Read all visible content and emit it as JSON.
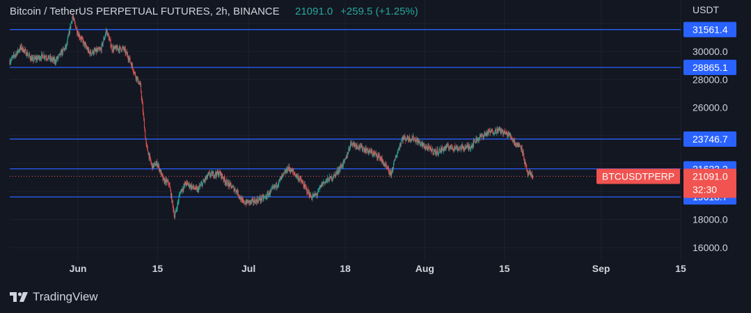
{
  "header": {
    "symbol_title": "Bitcoin / TetherUS PERPETUAL FUTURES, 2h, BINANCE",
    "last": "21091.0",
    "change": "+259.5 (+1.25%)"
  },
  "colors": {
    "background": "#131722",
    "grid": "#1e222d",
    "level_line": "#2962ff",
    "up": "#26a69a",
    "down": "#ef5350",
    "text": "#d1d4dc",
    "badge_blue": "#2962ff",
    "badge_red": "#f05350"
  },
  "footer": {
    "brand": "TradingView"
  },
  "chart_data": {
    "type": "candlestick",
    "currency": "USDT",
    "y_ticks": [
      16000,
      18000,
      26000,
      28000,
      30000
    ],
    "y_tick_labels": [
      "16000.0",
      "18000.0",
      "26000.0",
      "28000.0",
      "30000.0"
    ],
    "ylim": [
      15500,
      33000
    ],
    "x_ticks": [
      {
        "label": "Jun",
        "date": "2022-06-01"
      },
      {
        "label": "15",
        "date": "2022-06-15"
      },
      {
        "label": "Jul",
        "date": "2022-07-01"
      },
      {
        "label": "18",
        "date": "2022-07-18"
      },
      {
        "label": "Aug",
        "date": "2022-08-01"
      },
      {
        "label": "15",
        "date": "2022-08-15"
      },
      {
        "label": "Sep",
        "date": "2022-09-01"
      },
      {
        "label": "15",
        "date": "2022-09-15"
      }
    ],
    "xlim": [
      "2022-05-20",
      "2022-09-15"
    ],
    "price_levels": [
      {
        "value": 31561.4,
        "label": "31561.4"
      },
      {
        "value": 28865.1,
        "label": "28865.1"
      },
      {
        "value": 23746.7,
        "label": "23746.7"
      },
      {
        "value": 21622.2,
        "label": "21622.2"
      },
      {
        "value": 19618.7,
        "label": "19618.7"
      }
    ],
    "current_price": {
      "symbol": "BTCUSDTPERP",
      "value": 21091.0,
      "label": "21091.0",
      "countdown": "32:30"
    },
    "path": [
      [
        "2022-05-20",
        29300
      ],
      [
        "2022-05-22",
        30300
      ],
      [
        "2022-05-24",
        29400
      ],
      [
        "2022-05-26",
        29700
      ],
      [
        "2022-05-28",
        29300
      ],
      [
        "2022-05-30",
        30400
      ],
      [
        "2022-05-31",
        32500
      ],
      [
        "2022-06-01",
        31300
      ],
      [
        "2022-06-03",
        29900
      ],
      [
        "2022-06-05",
        30100
      ],
      [
        "2022-06-06",
        31500
      ],
      [
        "2022-06-07",
        30200
      ],
      [
        "2022-06-09",
        30200
      ],
      [
        "2022-06-10",
        29500
      ],
      [
        "2022-06-11",
        28400
      ],
      [
        "2022-06-12",
        27500
      ],
      [
        "2022-06-13",
        23300
      ],
      [
        "2022-06-14",
        21800
      ],
      [
        "2022-06-15",
        22000
      ],
      [
        "2022-06-16",
        20800
      ],
      [
        "2022-06-17",
        20600
      ],
      [
        "2022-06-18",
        18200
      ],
      [
        "2022-06-19",
        20000
      ],
      [
        "2022-06-20",
        20600
      ],
      [
        "2022-06-22",
        20100
      ],
      [
        "2022-06-24",
        21200
      ],
      [
        "2022-06-26",
        21300
      ],
      [
        "2022-06-27",
        20700
      ],
      [
        "2022-06-29",
        20000
      ],
      [
        "2022-06-30",
        19200
      ],
      [
        "2022-07-02",
        19300
      ],
      [
        "2022-07-04",
        19600
      ],
      [
        "2022-07-06",
        20500
      ],
      [
        "2022-07-08",
        21700
      ],
      [
        "2022-07-10",
        20900
      ],
      [
        "2022-07-12",
        19600
      ],
      [
        "2022-07-13",
        19800
      ],
      [
        "2022-07-14",
        20600
      ],
      [
        "2022-07-16",
        21100
      ],
      [
        "2022-07-18",
        22200
      ],
      [
        "2022-07-19",
        23500
      ],
      [
        "2022-07-20",
        23300
      ],
      [
        "2022-07-22",
        22900
      ],
      [
        "2022-07-24",
        22500
      ],
      [
        "2022-07-26",
        21200
      ],
      [
        "2022-07-27",
        22600
      ],
      [
        "2022-07-28",
        23800
      ],
      [
        "2022-07-30",
        23800
      ],
      [
        "2022-08-01",
        23200
      ],
      [
        "2022-08-03",
        22800
      ],
      [
        "2022-08-05",
        23200
      ],
      [
        "2022-08-07",
        23100
      ],
      [
        "2022-08-09",
        23200
      ],
      [
        "2022-08-10",
        23700
      ],
      [
        "2022-08-12",
        24200
      ],
      [
        "2022-08-14",
        24400
      ],
      [
        "2022-08-15",
        24200
      ],
      [
        "2022-08-16",
        24000
      ],
      [
        "2022-08-17",
        23400
      ],
      [
        "2022-08-18",
        23200
      ],
      [
        "2022-08-19",
        21300
      ],
      [
        "2022-08-20",
        21100
      ]
    ]
  }
}
